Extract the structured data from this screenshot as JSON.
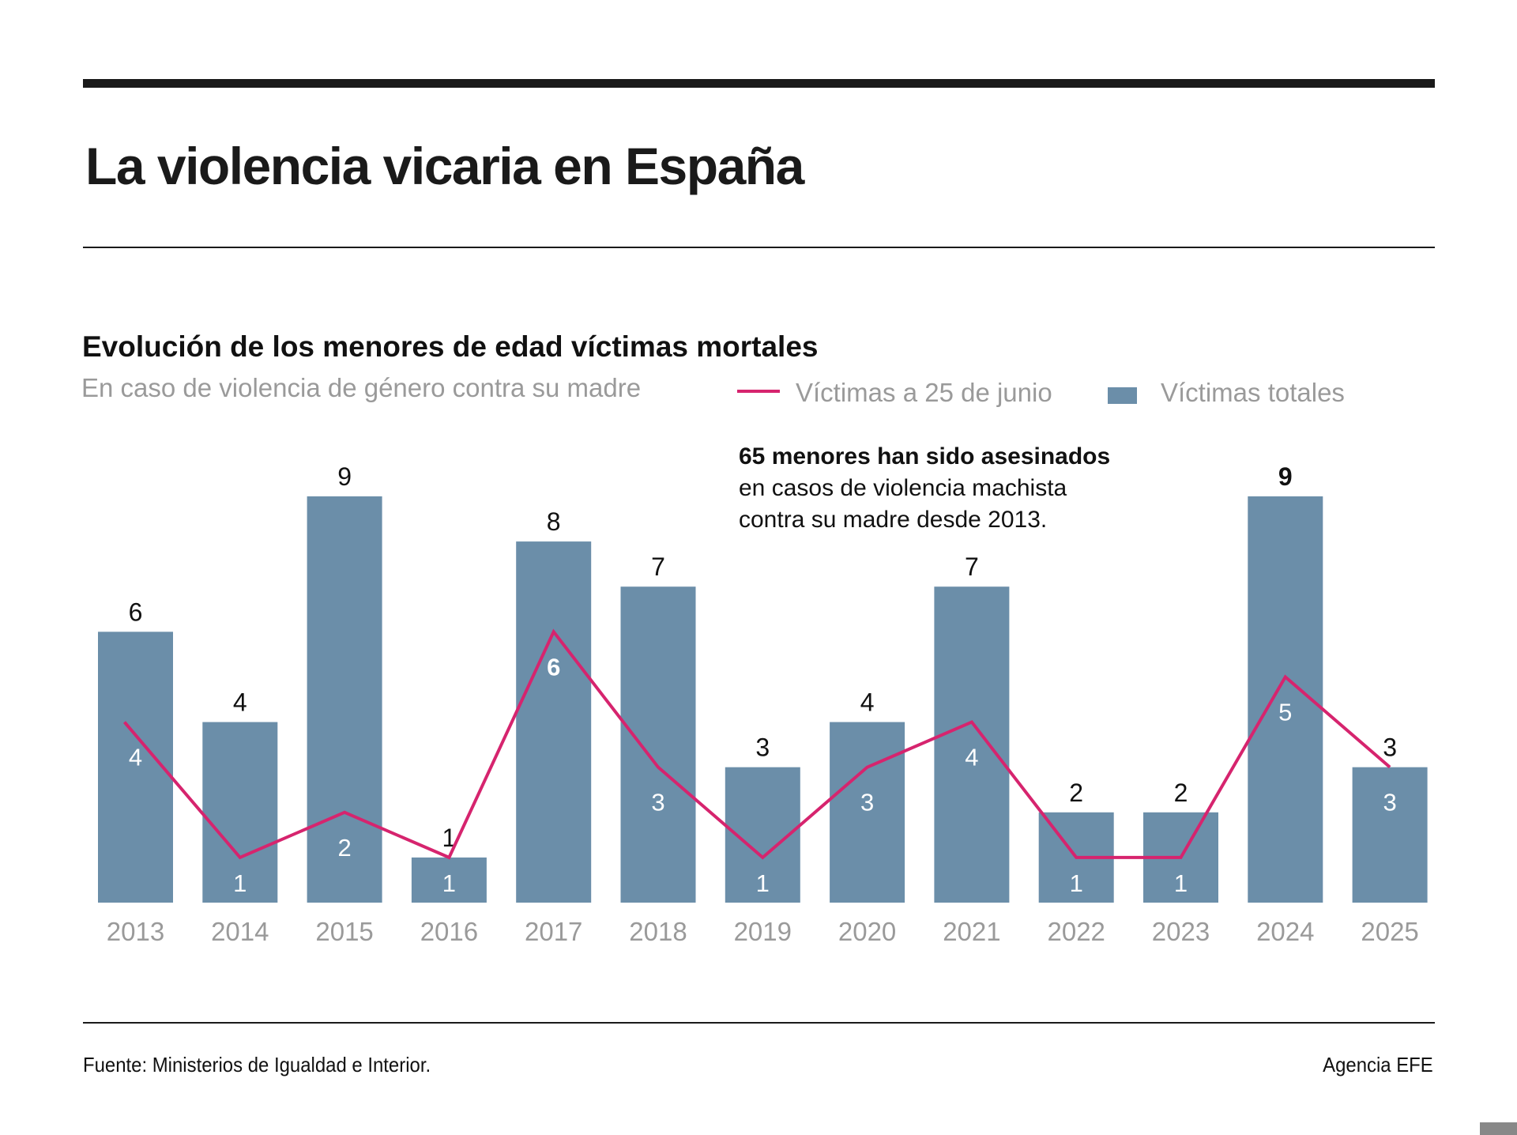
{
  "title": "La violencia vicaria en España",
  "chart_data": {
    "type": "bar",
    "title": "Evolución de los menores de edad víctimas mortales",
    "subtitle": "En caso de violencia de género contra su madre",
    "categories": [
      "2013",
      "2014",
      "2015",
      "2016",
      "2017",
      "2018",
      "2019",
      "2020",
      "2021",
      "2022",
      "2023",
      "2024",
      "2025"
    ],
    "series": [
      {
        "name": "Víctimas totales",
        "type": "bar",
        "color": "#6b8ea9",
        "values": [
          6,
          4,
          9,
          1,
          8,
          7,
          3,
          4,
          7,
          2,
          2,
          9,
          3
        ]
      },
      {
        "name": "Víctimas a 25 de junio",
        "type": "line",
        "color": "#d6246e",
        "values": [
          4,
          1,
          2,
          1,
          6,
          3,
          1,
          3,
          4,
          1,
          1,
          5,
          3
        ]
      }
    ],
    "highlight": {
      "bar_bold_label": "2024",
      "line_bold_label": "2017"
    },
    "ylim": [
      0,
      9
    ],
    "grid": false,
    "legend": "top-right",
    "annotation": {
      "bold": "65 menores han sido asesinados",
      "lines": [
        "en casos de violencia machista",
        "contra su madre desde 2013."
      ]
    }
  },
  "footer": {
    "source": "Fuente: Ministerios de Igualdad e Interior.",
    "credit": "Agencia EFE"
  }
}
